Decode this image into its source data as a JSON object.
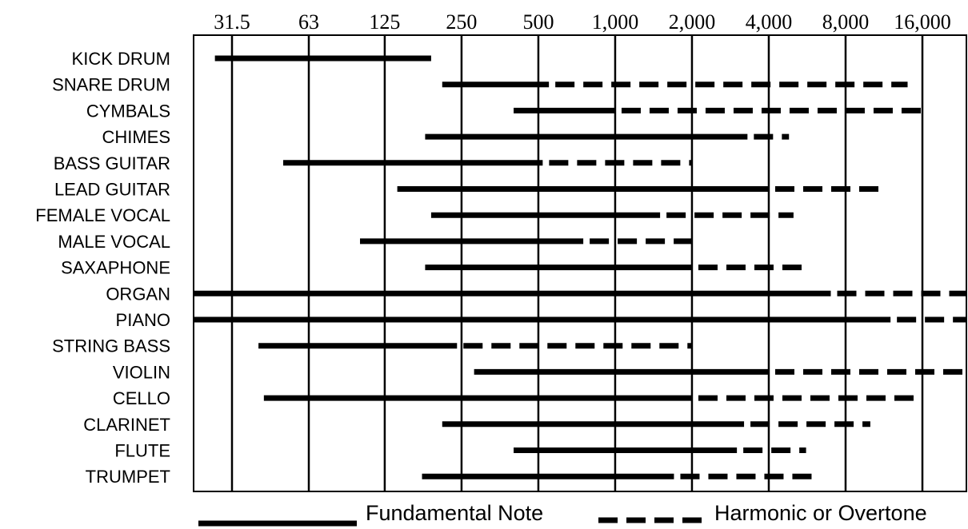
{
  "chart_data": {
    "type": "range-bar",
    "x_scale": "log2",
    "x_tick_labels": [
      "31.5",
      "63",
      "125",
      "250",
      "500",
      "1,000",
      "2,000",
      "4,000",
      "8,000",
      "16,000"
    ],
    "x_ticks": [
      31.5,
      63,
      125,
      250,
      500,
      1000,
      2000,
      4000,
      8000,
      16000
    ],
    "xlim": [
      20,
      25000
    ],
    "categories": [
      "KICK DRUM",
      "SNARE DRUM",
      "CYMBALS",
      "CHIMES",
      "BASS GUITAR",
      "LEAD GUITAR",
      "FEMALE VOCAL",
      "MALE VOCAL",
      "SAXAPHONE",
      "ORGAN",
      "PIANO",
      "STRING BASS",
      "VIOLIN",
      "CELLO",
      "CLARINET",
      "FLUTE",
      "TRUMPET"
    ],
    "series": [
      {
        "name": "Fundamental Note",
        "style": "solid",
        "ranges": [
          [
            27,
            190
          ],
          [
            210,
            550
          ],
          [
            400,
            1000
          ],
          [
            180,
            3300
          ],
          [
            50,
            520
          ],
          [
            140,
            4000
          ],
          [
            190,
            1500
          ],
          [
            100,
            750
          ],
          [
            180,
            2000
          ],
          [
            20,
            7000
          ],
          [
            20,
            12000
          ],
          [
            40,
            240
          ],
          [
            280,
            4000
          ],
          [
            42,
            2000
          ],
          [
            210,
            3200
          ],
          [
            400,
            3000
          ],
          [
            175,
            1700
          ]
        ]
      },
      {
        "name": "Harmonic or Overtone",
        "style": "dashed",
        "ranges": [
          null,
          [
            550,
            14000
          ],
          [
            1000,
            16000
          ],
          [
            3300,
            4800
          ],
          [
            520,
            2000
          ],
          [
            4000,
            11000
          ],
          [
            1500,
            5000
          ],
          [
            750,
            2000
          ],
          [
            2000,
            5600
          ],
          [
            7000,
            25000
          ],
          [
            12000,
            25000
          ],
          [
            240,
            2000
          ],
          [
            4000,
            25000
          ],
          [
            2000,
            16000
          ],
          [
            3200,
            10000
          ],
          [
            3000,
            5600
          ],
          [
            1700,
            6000
          ]
        ]
      }
    ],
    "grid": true,
    "legend_position": "bottom",
    "colors": {
      "line": "#000000",
      "background": "#ffffff"
    }
  }
}
